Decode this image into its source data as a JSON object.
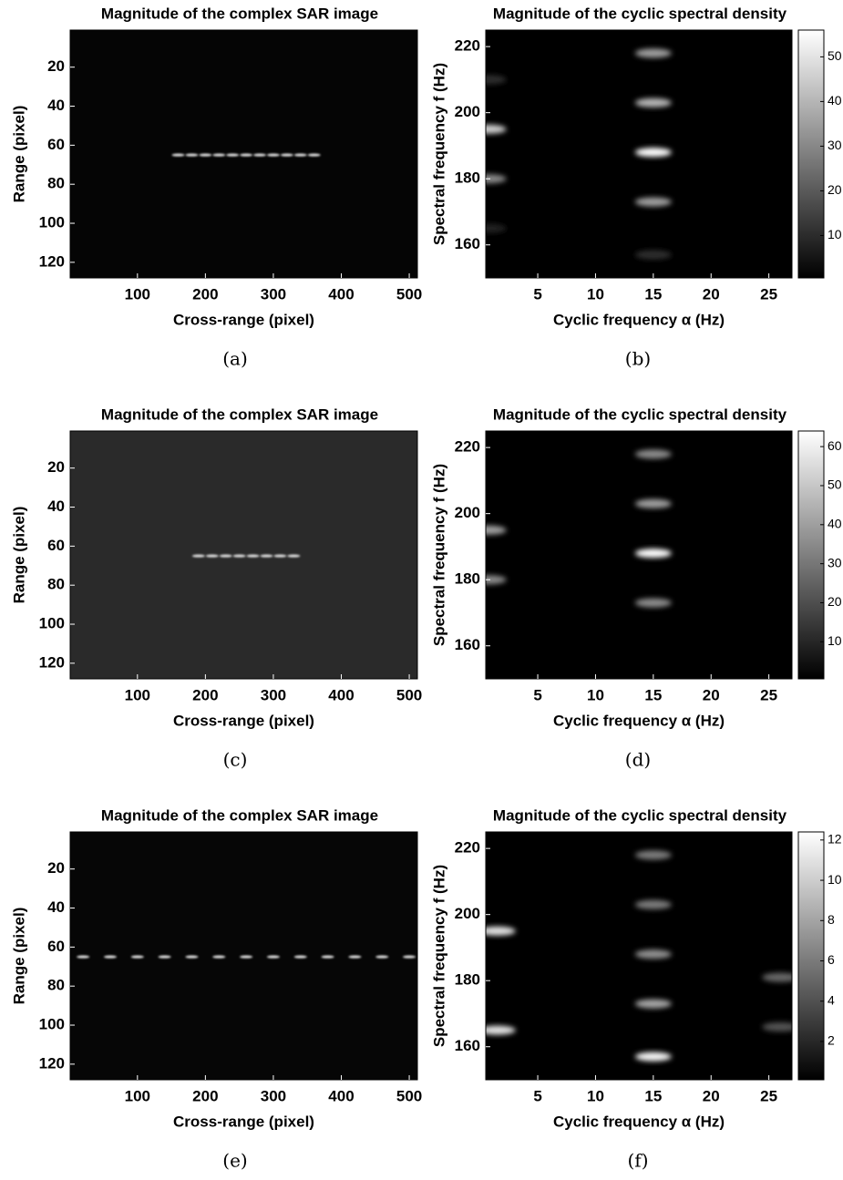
{
  "chart_data": [
    {
      "type": "heatmap",
      "title": "Magnitude of the complex SAR image",
      "xlabel": "Cross-range (pixel)",
      "ylabel": "Range (pixel)",
      "caption": "(a)",
      "xlim": [
        1,
        512
      ],
      "ylim": [
        1,
        128
      ],
      "y_reversed": true,
      "xticks": [
        100,
        200,
        300,
        400,
        500
      ],
      "yticks": [
        20,
        40,
        60,
        80,
        100,
        120
      ],
      "background": "#050505",
      "spots": [
        {
          "x": 160,
          "y": 65
        },
        {
          "x": 180,
          "y": 65
        },
        {
          "x": 200,
          "y": 65
        },
        {
          "x": 220,
          "y": 65
        },
        {
          "x": 240,
          "y": 65
        },
        {
          "x": 260,
          "y": 65
        },
        {
          "x": 280,
          "y": 65
        },
        {
          "x": 300,
          "y": 65
        },
        {
          "x": 320,
          "y": 65
        },
        {
          "x": 340,
          "y": 65
        },
        {
          "x": 360,
          "y": 65
        }
      ]
    },
    {
      "type": "heatmap",
      "title": "Magnitude of the cyclic spectral density",
      "xlabel": "Cyclic frequency α (Hz)",
      "ylabel": "Spectral frequency f (Hz)",
      "caption": "(b)",
      "xlim": [
        0.5,
        27
      ],
      "ylim": [
        150,
        225
      ],
      "xticks": [
        5,
        10,
        15,
        20,
        25
      ],
      "yticks": [
        160,
        180,
        200,
        220
      ],
      "clim": [
        0.5,
        56
      ],
      "cticks": [
        10,
        20,
        30,
        40,
        50
      ],
      "background": "#000000",
      "spots": [
        {
          "x": 15,
          "y": 218,
          "value": 35
        },
        {
          "x": 15,
          "y": 203,
          "value": 40
        },
        {
          "x": 15,
          "y": 188,
          "value": 56
        },
        {
          "x": 15,
          "y": 173,
          "value": 35
        },
        {
          "x": 15,
          "y": 157,
          "value": 10
        },
        {
          "x": 0.7,
          "y": 195,
          "value": 45
        },
        {
          "x": 0.7,
          "y": 180,
          "value": 30
        },
        {
          "x": 0.7,
          "y": 210,
          "value": 10
        },
        {
          "x": 0.7,
          "y": 165,
          "value": 8
        }
      ]
    },
    {
      "type": "heatmap",
      "title": "Magnitude of the complex SAR image",
      "xlabel": "Cross-range (pixel)",
      "ylabel": "Range (pixel)",
      "caption": "(c)",
      "xlim": [
        1,
        512
      ],
      "ylim": [
        1,
        128
      ],
      "y_reversed": true,
      "xticks": [
        100,
        200,
        300,
        400,
        500
      ],
      "yticks": [
        20,
        40,
        60,
        80,
        100,
        120
      ],
      "background": "#2a2a2a",
      "spots": [
        {
          "x": 190,
          "y": 65
        },
        {
          "x": 210,
          "y": 65
        },
        {
          "x": 230,
          "y": 65
        },
        {
          "x": 250,
          "y": 65
        },
        {
          "x": 270,
          "y": 65
        },
        {
          "x": 290,
          "y": 65
        },
        {
          "x": 310,
          "y": 65
        },
        {
          "x": 330,
          "y": 65
        }
      ]
    },
    {
      "type": "heatmap",
      "title": "Magnitude of the cyclic spectral density",
      "xlabel": "Cyclic frequency α (Hz)",
      "ylabel": "Spectral frequency f (Hz)",
      "caption": "(d)",
      "xlim": [
        0.5,
        27
      ],
      "ylim": [
        150,
        225
      ],
      "xticks": [
        5,
        10,
        15,
        20,
        25
      ],
      "yticks": [
        160,
        180,
        200,
        220
      ],
      "clim": [
        0.5,
        64
      ],
      "cticks": [
        10,
        20,
        30,
        40,
        50,
        60
      ],
      "background": "#000000",
      "spots": [
        {
          "x": 15,
          "y": 218,
          "value": 35
        },
        {
          "x": 15,
          "y": 203,
          "value": 40
        },
        {
          "x": 15,
          "y": 188,
          "value": 64
        },
        {
          "x": 15,
          "y": 173,
          "value": 35
        },
        {
          "x": 0.7,
          "y": 195,
          "value": 40
        },
        {
          "x": 0.7,
          "y": 180,
          "value": 35
        }
      ]
    },
    {
      "type": "heatmap",
      "title": "Magnitude of the complex SAR image",
      "xlabel": "Cross-range (pixel)",
      "ylabel": "Range (pixel)",
      "caption": "(e)",
      "xlim": [
        1,
        512
      ],
      "ylim": [
        1,
        128
      ],
      "y_reversed": true,
      "xticks": [
        100,
        200,
        300,
        400,
        500
      ],
      "yticks": [
        20,
        40,
        60,
        80,
        100,
        120
      ],
      "background": "#060606",
      "spots": [
        {
          "x": 20,
          "y": 65
        },
        {
          "x": 60,
          "y": 65
        },
        {
          "x": 100,
          "y": 65
        },
        {
          "x": 140,
          "y": 65
        },
        {
          "x": 180,
          "y": 65
        },
        {
          "x": 220,
          "y": 65
        },
        {
          "x": 260,
          "y": 65
        },
        {
          "x": 300,
          "y": 65
        },
        {
          "x": 340,
          "y": 65
        },
        {
          "x": 380,
          "y": 65
        },
        {
          "x": 420,
          "y": 65
        },
        {
          "x": 460,
          "y": 65
        },
        {
          "x": 500,
          "y": 65
        }
      ]
    },
    {
      "type": "heatmap",
      "title": "Magnitude of the cyclic spectral density",
      "xlabel": "Cyclic frequency α (Hz)",
      "ylabel": "Spectral frequency f (Hz)",
      "caption": "(f)",
      "xlim": [
        0.5,
        27
      ],
      "ylim": [
        150,
        225
      ],
      "xticks": [
        5,
        10,
        15,
        20,
        25
      ],
      "yticks": [
        160,
        180,
        200,
        220
      ],
      "clim": [
        0.1,
        12.4
      ],
      "cticks": [
        2,
        4,
        6,
        8,
        10,
        12
      ],
      "background": "#000000",
      "spots": [
        {
          "x": 15,
          "y": 218,
          "value": 6
        },
        {
          "x": 15,
          "y": 203,
          "value": 6
        },
        {
          "x": 15,
          "y": 188,
          "value": 7
        },
        {
          "x": 15,
          "y": 173,
          "value": 8
        },
        {
          "x": 15,
          "y": 157,
          "value": 12
        },
        {
          "x": 1.5,
          "y": 195,
          "value": 11
        },
        {
          "x": 1.5,
          "y": 165,
          "value": 11
        },
        {
          "x": 26,
          "y": 181,
          "value": 5
        },
        {
          "x": 26,
          "y": 166,
          "value": 4
        }
      ]
    }
  ]
}
